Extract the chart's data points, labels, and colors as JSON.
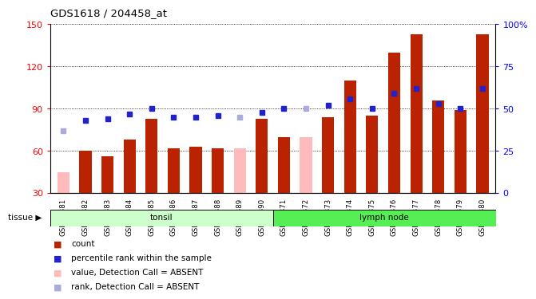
{
  "title": "GDS1618 / 204458_at",
  "samples": [
    "GSM51381",
    "GSM51382",
    "GSM51383",
    "GSM51384",
    "GSM51385",
    "GSM51386",
    "GSM51387",
    "GSM51388",
    "GSM51389",
    "GSM51390",
    "GSM51371",
    "GSM51372",
    "GSM51373",
    "GSM51374",
    "GSM51375",
    "GSM51376",
    "GSM51377",
    "GSM51378",
    "GSM51379",
    "GSM51380"
  ],
  "count_values": [
    null,
    60,
    56,
    68,
    83,
    62,
    63,
    62,
    null,
    83,
    70,
    null,
    84,
    110,
    85,
    130,
    143,
    96,
    89,
    143
  ],
  "count_absent": [
    45,
    null,
    null,
    null,
    null,
    null,
    null,
    null,
    62,
    null,
    null,
    70,
    null,
    null,
    null,
    null,
    null,
    null,
    null,
    null
  ],
  "rank_values": [
    null,
    43,
    44,
    47,
    50,
    45,
    45,
    46,
    null,
    48,
    50,
    null,
    52,
    56,
    50,
    59,
    62,
    53,
    50,
    62
  ],
  "rank_absent": [
    37,
    null,
    null,
    null,
    null,
    null,
    null,
    null,
    45,
    null,
    null,
    50,
    null,
    null,
    null,
    null,
    null,
    null,
    null,
    null
  ],
  "tonsil_indices": [
    0,
    1,
    2,
    3,
    4,
    5,
    6,
    7,
    8,
    9
  ],
  "lymphnode_indices": [
    10,
    11,
    12,
    13,
    14,
    15,
    16,
    17,
    18,
    19
  ],
  "ylim_left": [
    30,
    150
  ],
  "ylim_right": [
    0,
    100
  ],
  "yticks_left": [
    30,
    60,
    90,
    120,
    150
  ],
  "yticks_right": [
    0,
    25,
    50,
    75,
    100
  ],
  "bar_color": "#bb2200",
  "bar_absent_color": "#ffbbbb",
  "rank_color": "#2222cc",
  "rank_absent_color": "#aaaadd",
  "tonsil_bg": "#ccffcc",
  "lymph_bg": "#55ee55",
  "grid_color": "#555555",
  "legend_items": [
    {
      "label": "count",
      "color": "#bb2200"
    },
    {
      "label": "percentile rank within the sample",
      "color": "#2222cc"
    },
    {
      "label": "value, Detection Call = ABSENT",
      "color": "#ffbbbb"
    },
    {
      "label": "rank, Detection Call = ABSENT",
      "color": "#aaaadd"
    }
  ]
}
